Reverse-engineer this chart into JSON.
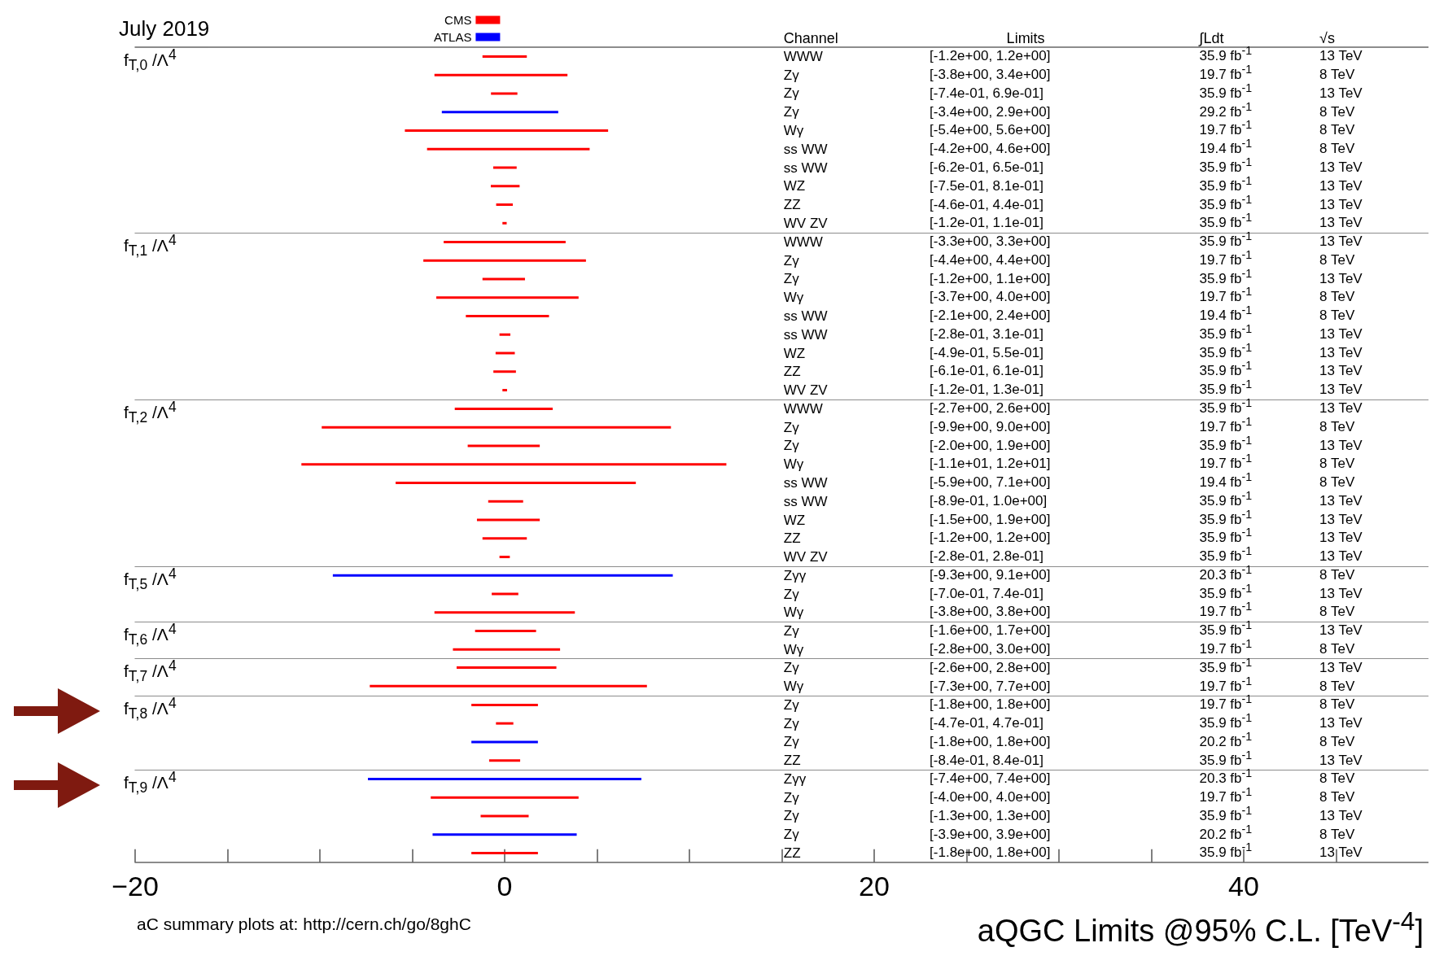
{
  "chart_data": [
    {
      "type": "other",
      "title": "July 2019",
      "annotations": [
        "Channel",
        "Limits",
        "∫Ldt",
        "√s"
      ]
    },
    {
      "type": "bar",
      "orientation": "horizontal",
      "title": "f$_{T,0}$ /Λ$^{4}$",
      "legend": "top",
      "tick_labels": "y",
      "xlim": [
        -20,
        50
      ],
      "categories": [
        "WWW",
        "Zγ",
        "Zγ",
        "Zγ",
        "Wγ",
        "ss WW",
        "ss WW",
        "WZ",
        "ZZ",
        "WV ZV"
      ],
      "series": [
        {
          "name": "CMS",
          "color": "#ff0000",
          "base": [
            -1.2,
            -3.8,
            -0.74,
            null,
            -5.4,
            -4.2,
            -0.62,
            -0.75,
            -0.46,
            -0.12
          ],
          "values": [
            2.4,
            7.2,
            1.43,
            null,
            11.0,
            8.8,
            1.27,
            1.56,
            0.9,
            0.23
          ]
        },
        {
          "name": "ATLAS",
          "color": "#0000ff",
          "base": [
            null,
            null,
            null,
            -3.4,
            null,
            null,
            null,
            null,
            null,
            null
          ],
          "values": [
            null,
            null,
            null,
            6.3,
            null,
            null,
            null,
            null,
            null,
            null
          ]
        }
      ],
      "annotations": [
        "[-1.2e+00, 1.2e+00]",
        "35.9 fb$^{-1}$",
        "13 TeV",
        "[-3.8e+00, 3.4e+00]",
        "19.7 fb$^{-1}$",
        "8 TeV",
        "[-7.4e-01, 6.9e-01]",
        "35.9 fb$^{-1}$",
        "13 TeV",
        "[-3.4e+00, 2.9e+00]",
        "29.2 fb$^{-1}$",
        "8 TeV",
        "[-5.4e+00, 5.6e+00]",
        "19.7 fb$^{-1}$",
        "8 TeV",
        "[-4.2e+00, 4.6e+00]",
        "19.4 fb$^{-1}$",
        "8 TeV",
        "[-6.2e-01, 6.5e-01]",
        "35.9 fb$^{-1}$",
        "13 TeV",
        "[-7.5e-01, 8.1e-01]",
        "35.9 fb$^{-1}$",
        "13 TeV",
        "[-4.6e-01, 4.4e-01]",
        "35.9 fb$^{-1}$",
        "13 TeV",
        "[-1.2e-01, 1.1e-01]",
        "35.9 fb$^{-1}$",
        "13 TeV"
      ]
    },
    {
      "type": "bar",
      "orientation": "horizontal",
      "title": "f$_{T,1}$ /Λ$^{4}$",
      "tick_labels": "y",
      "xlim": [
        -20,
        50
      ],
      "categories": [
        "WWW",
        "Zγ",
        "Zγ",
        "Wγ",
        "ss WW",
        "ss WW",
        "WZ",
        "ZZ",
        "WV ZV"
      ],
      "series": [
        {
          "color": "#ff0000",
          "base": [
            -3.3,
            -4.4,
            -1.2,
            -3.7,
            -2.1,
            -0.28,
            -0.49,
            -0.61,
            -0.12
          ],
          "values": [
            6.6,
            8.8,
            2.3,
            7.7,
            4.5,
            0.59,
            1.04,
            1.22,
            0.25
          ]
        }
      ],
      "annotations": [
        "[-3.3e+00, 3.3e+00]",
        "35.9 fb$^{-1}$",
        "13 TeV",
        "[-4.4e+00, 4.4e+00]",
        "19.7 fb$^{-1}$",
        "8 TeV",
        "[-1.2e+00, 1.1e+00]",
        "35.9 fb$^{-1}$",
        "13 TeV",
        "[-3.7e+00, 4.0e+00]",
        "19.7 fb$^{-1}$",
        "8 TeV",
        "[-2.1e+00, 2.4e+00]",
        "19.4 fb$^{-1}$",
        "8 TeV",
        "[-2.8e-01, 3.1e-01]",
        "35.9 fb$^{-1}$",
        "13 TeV",
        "[-4.9e-01, 5.5e-01]",
        "35.9 fb$^{-1}$",
        "13 TeV",
        "[-6.1e-01, 6.1e-01]",
        "35.9 fb$^{-1}$",
        "13 TeV",
        "[-1.2e-01, 1.3e-01]",
        "35.9 fb$^{-1}$",
        "13 TeV"
      ]
    },
    {
      "type": "bar",
      "orientation": "horizontal",
      "title": "f$_{T,2}$ /Λ$^{4}$",
      "tick_labels": "y",
      "xlim": [
        -20,
        50
      ],
      "categories": [
        "WWW",
        "Zγ",
        "Zγ",
        "Wγ",
        "ss WW",
        "ss WW",
        "WZ",
        "ZZ",
        "WV ZV"
      ],
      "series": [
        {
          "color": "#ff0000",
          "base": [
            -2.7,
            -9.9,
            -2.0,
            -11,
            -5.9,
            -0.89,
            -1.5,
            -1.2,
            -0.28
          ],
          "values": [
            5.3,
            18.9,
            3.9,
            23,
            13.0,
            1.89,
            3.4,
            2.4,
            0.56
          ]
        }
      ],
      "annotations": [
        "[-2.7e+00, 2.6e+00]",
        "35.9 fb$^{-1}$",
        "13 TeV",
        "[-9.9e+00, 9.0e+00]",
        "19.7 fb$^{-1}$",
        "8 TeV",
        "[-2.0e+00, 1.9e+00]",
        "35.9 fb$^{-1}$",
        "13 TeV",
        "[-1.1e+01, 1.2e+01]",
        "19.7 fb$^{-1}$",
        "8 TeV",
        "[-5.9e+00, 7.1e+00]",
        "19.4 fb$^{-1}$",
        "8 TeV",
        "[-8.9e-01, 1.0e+00]",
        "35.9 fb$^{-1}$",
        "13 TeV",
        "[-1.5e+00, 1.9e+00]",
        "35.9 fb$^{-1}$",
        "13 TeV",
        "[-1.2e+00, 1.2e+00]",
        "35.9 fb$^{-1}$",
        "13 TeV",
        "[-2.8e-01, 2.8e-01]",
        "35.9 fb$^{-1}$",
        "13 TeV"
      ]
    },
    {
      "type": "bar",
      "orientation": "horizontal",
      "title": "f$_{T,5}$ /Λ$^{4}$",
      "tick_labels": "y",
      "xlim": [
        -20,
        50
      ],
      "categories": [
        "Zγγ",
        "Zγ",
        "Wγ"
      ],
      "series": [
        {
          "color": "#ff0000",
          "base": [
            null,
            -0.7,
            -3.8
          ],
          "values": [
            null,
            1.44,
            7.6
          ]
        },
        {
          "color": "#0000ff",
          "base": [
            -9.3,
            null,
            null
          ],
          "values": [
            18.4,
            null,
            null
          ]
        }
      ],
      "annotations": [
        "[-9.3e+00, 9.1e+00]",
        "20.3 fb$^{-1}$",
        "8 TeV",
        "[-7.0e-01, 7.4e-01]",
        "35.9 fb$^{-1}$",
        "13 TeV",
        "[-3.8e+00, 3.8e+00]",
        "19.7 fb$^{-1}$",
        "8 TeV"
      ]
    },
    {
      "type": "bar",
      "orientation": "horizontal",
      "title": "f$_{T,6}$ /Λ$^{4}$",
      "tick_labels": "y",
      "xlim": [
        -20,
        50
      ],
      "categories": [
        "Zγ",
        "Wγ"
      ],
      "series": [
        {
          "color": "#ff0000",
          "base": [
            -1.6,
            -2.8
          ],
          "values": [
            3.3,
            5.8
          ]
        }
      ],
      "annotations": [
        "[-1.6e+00, 1.7e+00]",
        "35.9 fb$^{-1}$",
        "13 TeV",
        "[-2.8e+00, 3.0e+00]",
        "19.7 fb$^{-1}$",
        "8 TeV"
      ]
    },
    {
      "type": "bar",
      "orientation": "horizontal",
      "title": "f$_{T,7}$ /Λ$^{4}$",
      "tick_labels": "y",
      "xlim": [
        -20,
        50
      ],
      "categories": [
        "Zγ",
        "Wγ"
      ],
      "series": [
        {
          "color": "#ff0000",
          "base": [
            -2.6,
            -7.3
          ],
          "values": [
            5.4,
            15.0
          ]
        }
      ],
      "annotations": [
        "[-2.6e+00, 2.8e+00]",
        "35.9 fb$^{-1}$",
        "13 TeV",
        "[-7.3e+00, 7.7e+00]",
        "19.7 fb$^{-1}$",
        "8 TeV"
      ]
    },
    {
      "type": "bar",
      "orientation": "horizontal",
      "title": "f$_{T,8}$ /Λ$^{4}$",
      "tick_labels": "y",
      "xlim": [
        -20,
        50
      ],
      "categories": [
        "Zγ",
        "Zγ",
        "Zγ",
        "ZZ"
      ],
      "series": [
        {
          "color": "#ff0000",
          "base": [
            -1.8,
            -0.47,
            null,
            -0.84
          ],
          "values": [
            3.6,
            0.94,
            null,
            1.68
          ]
        },
        {
          "color": "#0000ff",
          "base": [
            null,
            null,
            -1.8,
            null
          ],
          "values": [
            null,
            null,
            3.6,
            null
          ]
        }
      ],
      "annotations": [
        "[-1.8e+00, 1.8e+00]",
        "19.7 fb$^{-1}$",
        "8 TeV",
        "[-4.7e-01, 4.7e-01]",
        "35.9 fb$^{-1}$",
        "13 TeV",
        "[-1.8e+00, 1.8e+00]",
        "20.2 fb$^{-1}$",
        "8 TeV",
        "[-8.4e-01, 8.4e-01]",
        "35.9 fb$^{-1}$",
        "13 TeV"
      ]
    },
    {
      "type": "bar",
      "orientation": "horizontal",
      "title": "f$_{T,9}$ /Λ$^{4}$",
      "xlabel": "aQGC Limits @95% C.L. [TeV$^{-4}$]",
      "xlim": [
        -20,
        50
      ],
      "xticks": [
        {
          "value": -20,
          "label": "−20"
        },
        {
          "value": -15,
          "label": null
        },
        {
          "value": -10,
          "label": null
        },
        {
          "value": -5,
          "label": null
        },
        0,
        {
          "value": 5,
          "label": null
        },
        {
          "value": 10,
          "label": null
        },
        {
          "value": 15,
          "label": null
        },
        20,
        {
          "value": 25,
          "label": null
        },
        {
          "value": 30,
          "label": null
        },
        {
          "value": 35,
          "label": null
        },
        40,
        {
          "value": 45,
          "label": null
        }
      ],
      "categories": [
        "Zγγ",
        "Zγ",
        "Zγ",
        "Zγ",
        "ZZ"
      ],
      "series": [
        {
          "color": "#ff0000",
          "base": [
            null,
            -4.0,
            -1.3,
            null,
            -1.8
          ],
          "values": [
            null,
            8.0,
            2.6,
            null,
            3.6
          ]
        },
        {
          "color": "#0000ff",
          "base": [
            -7.4,
            null,
            null,
            -3.9,
            null
          ],
          "values": [
            14.8,
            null,
            null,
            7.8,
            null
          ]
        }
      ],
      "annotations": [
        "[-7.4e+00, 7.4e+00]",
        "20.3 fb$^{-1}$",
        "8 TeV",
        "[-4.0e+00, 4.0e+00]",
        "19.7 fb$^{-1}$",
        "8 TeV",
        "[-1.3e+00, 1.3e+00]",
        "35.9 fb$^{-1}$",
        "13 TeV",
        "[-3.9e+00, 3.9e+00]",
        "20.2 fb$^{-1}$",
        "8 TeV",
        "[-1.8e+00, 1.8e+00]",
        "35.9 fb$^{-1}$",
        "13 TeV"
      ]
    },
    {
      "type": "other",
      "annotations": [
        "aC summary plots at: http://cern.ch/go/8ghC"
      ]
    }
  ]
}
